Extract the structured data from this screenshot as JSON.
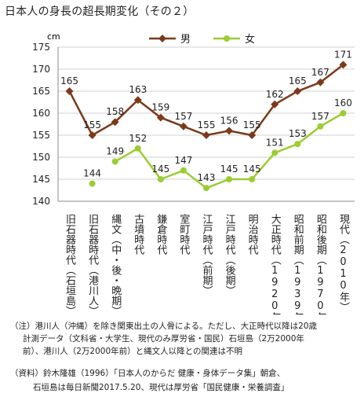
{
  "title": "日本人の身長の超長期変化（その２）",
  "chart_data": {
    "type": "line",
    "categories": [
      "旧石器時代（石垣島）",
      "旧石器時代（港川人）",
      "縄文（中・後・晩期）",
      "古墳時代",
      "鎌倉時代",
      "室町時代",
      "江戸時代（前期）",
      "江戸時代（後期）",
      "明治時代",
      "大正時代（1920年）",
      "昭和前期（1939年）",
      "昭和後期（1970年）",
      "現代（2010年）"
    ],
    "series": [
      {
        "name": "男",
        "color": "#7b3a1a",
        "marker": "diamond",
        "values": [
          165,
          155,
          158,
          163,
          159,
          157,
          155,
          156,
          155,
          162,
          165,
          167,
          171
        ],
        "labels": [
          "165",
          "155",
          "158",
          "163",
          "159",
          "157",
          "155",
          "156",
          "155",
          "162",
          "165",
          "167",
          "171"
        ]
      },
      {
        "name": "女",
        "color": "#9acd32",
        "marker": "circle",
        "values": [
          null,
          144,
          149,
          152,
          145,
          147,
          143,
          145,
          145,
          151,
          153,
          157,
          160
        ],
        "labels": [
          null,
          "144",
          "149",
          "152",
          "145",
          "147",
          "143",
          "145",
          "145",
          "151",
          "153",
          "157",
          "160"
        ]
      }
    ],
    "y_unit": "cm",
    "ylim": [
      140,
      175
    ],
    "yticks": [
      140,
      145,
      150,
      155,
      160,
      165,
      170,
      175
    ],
    "legend": "top-center",
    "grid": "horizontal"
  },
  "notes": {
    "line1": "（注）港川人（沖縄）を除き関東出土の人骨による。ただし、大正時代以降は20歳",
    "line2": "計測データ（文科省・大学生、現代のみ厚労省・国民）石垣島（2万2000年",
    "line3": "前）、港川人（2万2000年前）と縄文人以降との関連は不明",
    "source1": "（資料）鈴木隆雄（1996）「日本人のからだ 健康・身体データ集」朝倉、",
    "source2": "石垣島は毎日新聞2017.5.20、現代は厚労省「国民健康・栄養調査」"
  }
}
